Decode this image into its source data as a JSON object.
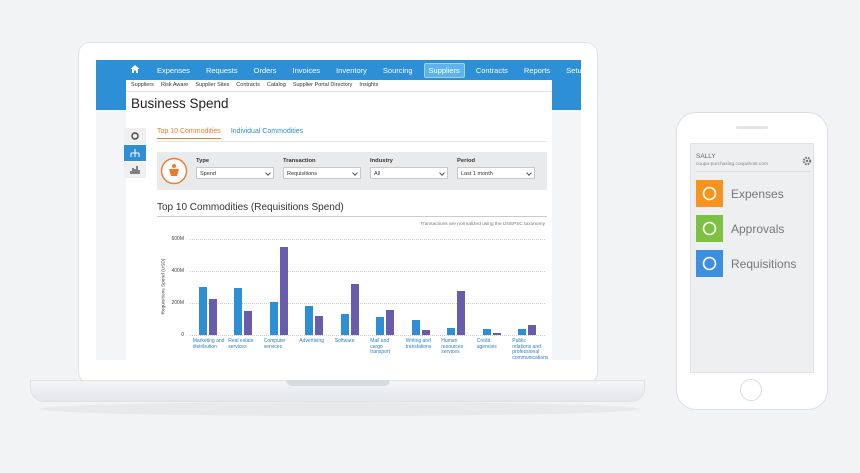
{
  "nav": {
    "items": [
      "Expenses",
      "Requests",
      "Orders",
      "Invoices",
      "Inventory",
      "Sourcing",
      "Suppliers",
      "Contracts",
      "Reports",
      "Setup"
    ],
    "active_index": 6
  },
  "subnav": [
    "Suppliers",
    "Risk Aware",
    "Supplier Sites",
    "Contracts",
    "Catalog",
    "Supplier Portal Directory",
    "Insights"
  ],
  "page_title": "Business Spend",
  "tabs": {
    "items": [
      "Top 10 Commodities",
      "Individual Commodities"
    ],
    "active_index": 0
  },
  "filters": [
    {
      "label": "Type",
      "value": "Spend"
    },
    {
      "label": "Transaction",
      "value": "Requisitions"
    },
    {
      "label": "Industry",
      "value": "All"
    },
    {
      "label": "Period",
      "value": "Last 1 month"
    }
  ],
  "chart_data": {
    "type": "bar",
    "title": "Top 10 Commodities (Requisitions Spend)",
    "subtitle": "Transactions are normalized using the UNSPSC taxonomy",
    "y_label": "Requisitions Spend (USD)",
    "categories": [
      "Marketing and distribution",
      "Real estate services",
      "Computer services",
      "Advertising",
      "Software",
      "Mail and cargo transport",
      "Writing and translations",
      "Human resources services",
      "Credit agencies",
      "Public relations and professional communications"
    ],
    "series": [
      {
        "color": "#2f8fd6",
        "values": [
          300,
          295,
          205,
          180,
          130,
          115,
          95,
          45,
          35,
          35
        ]
      },
      {
        "color": "#6a5cad",
        "values": [
          225,
          150,
          550,
          120,
          320,
          155,
          30,
          275,
          15,
          60
        ]
      }
    ],
    "ylim": [
      0,
      600
    ],
    "yticks": [
      0,
      {
        "value": 200,
        "label": "200M"
      },
      {
        "value": 400,
        "label": "400M"
      },
      {
        "value": 600,
        "label": "600M"
      }
    ],
    "grid": true
  },
  "mobile": {
    "user": "SALLY",
    "host": "coupa-purchasing.coupahost.com",
    "menu": [
      {
        "label": "Expenses",
        "color": "#f7941d"
      },
      {
        "label": "Approvals",
        "color": "#7dc142"
      },
      {
        "label": "Requisitions",
        "color": "#3d8fe0"
      }
    ]
  }
}
